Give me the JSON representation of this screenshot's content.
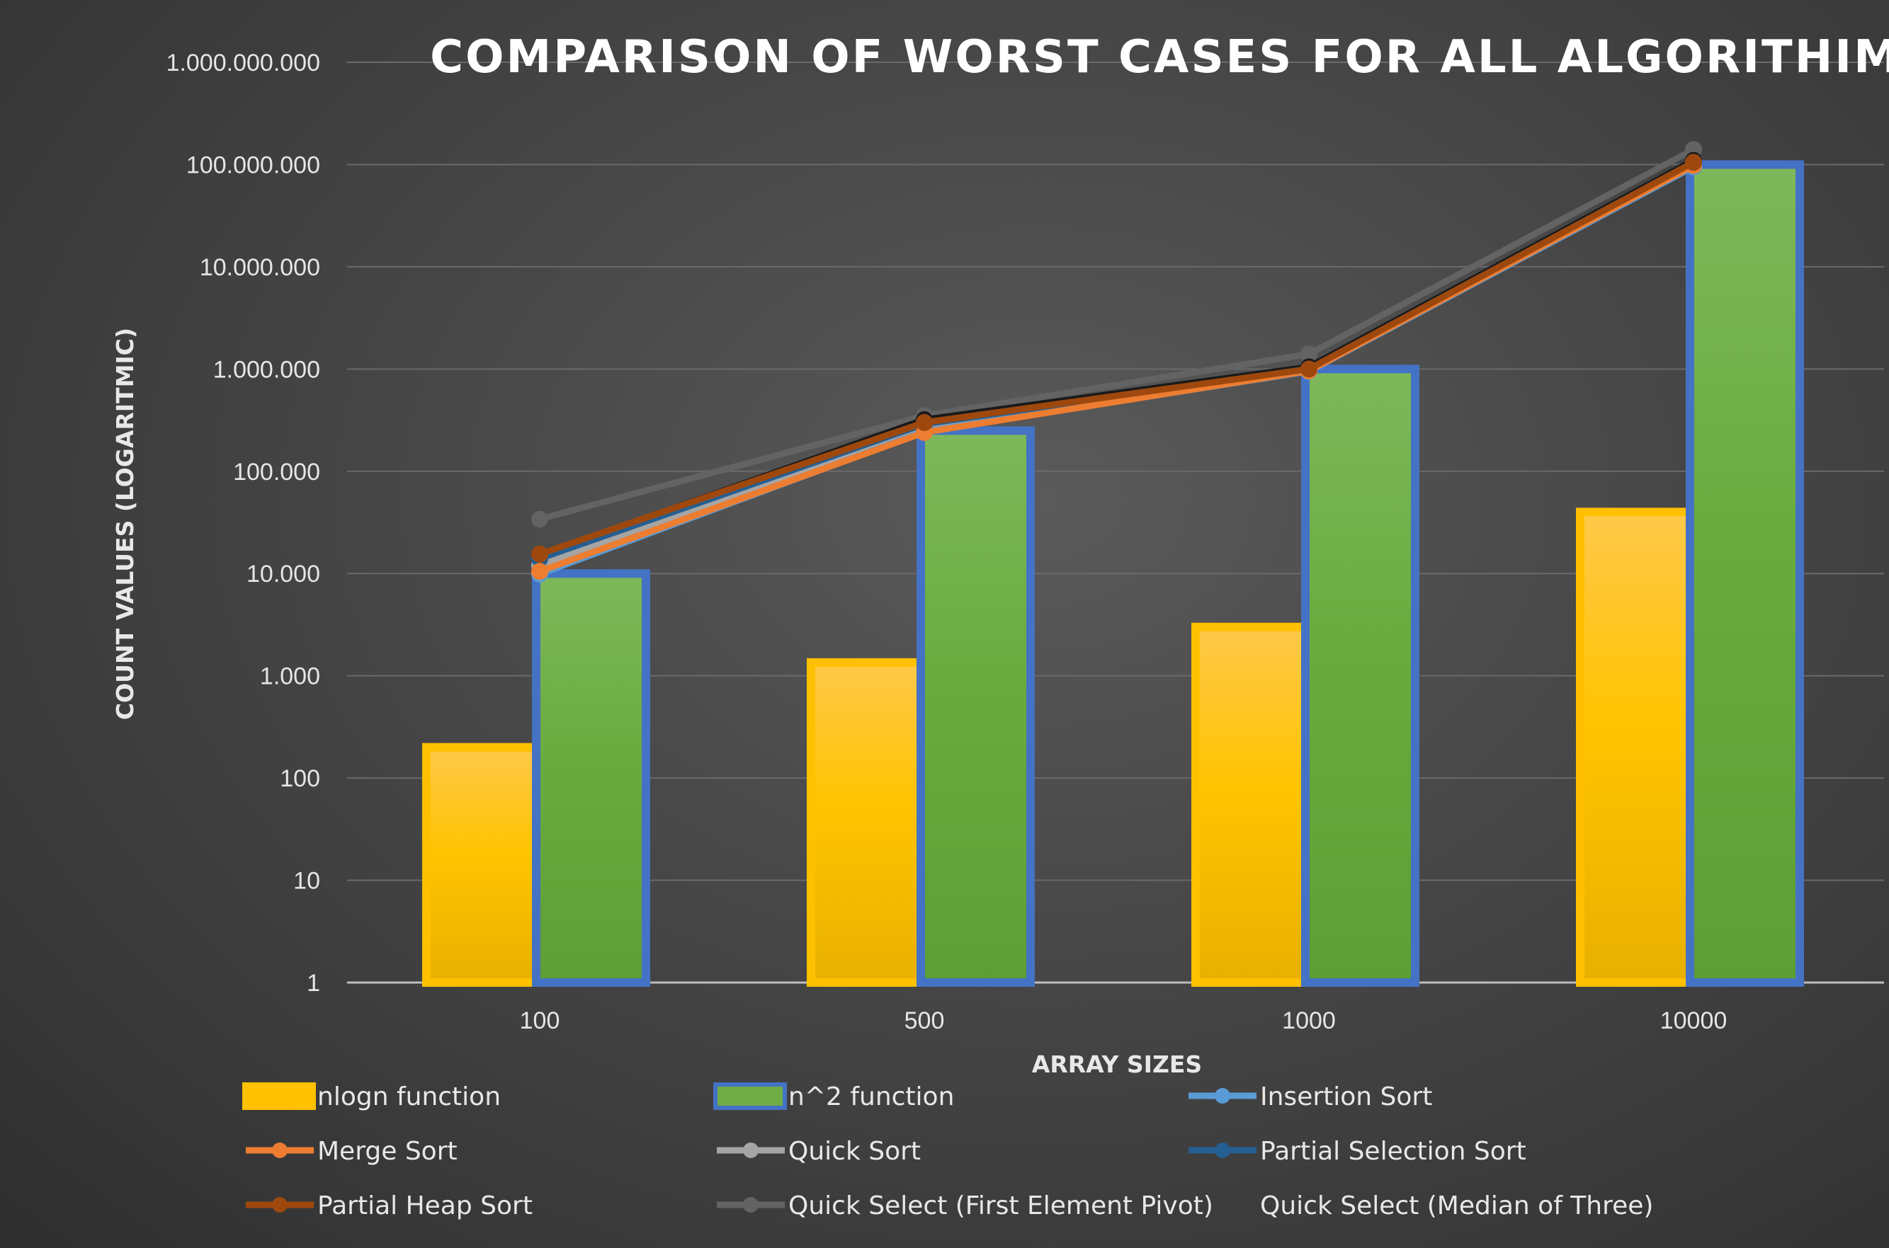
{
  "chart_data": {
    "type": "bar",
    "title": "COMPARISON OF WORST CASES FOR ALL ALGORITHIMS",
    "xlabel": "ARRAY SIZES",
    "ylabel": "COUNT VALUES (LOGARITMIC)",
    "y_scale": "log",
    "ylim": [
      1,
      1000000000
    ],
    "y_ticks": [
      1,
      10,
      100,
      1000,
      10000,
      100000,
      1000000,
      10000000,
      100000000,
      1000000000
    ],
    "y_tick_labels": [
      "1",
      "10",
      "100",
      "1.000",
      "10.000",
      "100.000",
      "1.000.000",
      "10.000.000",
      "100.000.000",
      "1.000.000.000"
    ],
    "categories": [
      "100",
      "500",
      "1000",
      "10000"
    ],
    "grid": true,
    "legend_position": "bottom",
    "series": [
      {
        "name": "nlogn function",
        "kind": "bar",
        "color": "#ffc000",
        "border": "#ffc000",
        "values": [
          200,
          1350,
          3000,
          40000
        ]
      },
      {
        "name": "n^2 function",
        "kind": "bar",
        "color": "#70ad47",
        "border": "#4472c4",
        "values": [
          10000,
          250000,
          1000000,
          100000000
        ]
      },
      {
        "name": "Insertion Sort",
        "kind": "line",
        "color": "#5b9bd5",
        "values": [
          9900,
          245000,
          950000,
          95000000
        ]
      },
      {
        "name": "Merge Sort",
        "kind": "line",
        "color": "#ed7d31",
        "values": [
          10500,
          240000,
          960000,
          98000000
        ]
      },
      {
        "name": "Quick Sort",
        "kind": "line",
        "color": "#a5a5a5",
        "values": [
          12000,
          280000,
          1050000,
          110000000
        ]
      },
      {
        "name": "Partial Selection Sort",
        "kind": "line",
        "color": "#255e91",
        "values": [
          14000,
          290000,
          1000000,
          105000000
        ]
      },
      {
        "name": "Partial Heap Sort",
        "kind": "line",
        "color": "#9e480e",
        "values": [
          15500,
          300000,
          1000000,
          105000000
        ]
      },
      {
        "name": "Quick Select (First Element Pivot)",
        "kind": "line",
        "color": "#636363",
        "values": [
          34000,
          350000,
          1400000,
          140000000
        ]
      },
      {
        "name": "Quick Select (Median of Three)",
        "kind": "line",
        "color": "#1a1a1a",
        "values": [
          15000,
          320000,
          1050000,
          110000000
        ]
      }
    ]
  }
}
